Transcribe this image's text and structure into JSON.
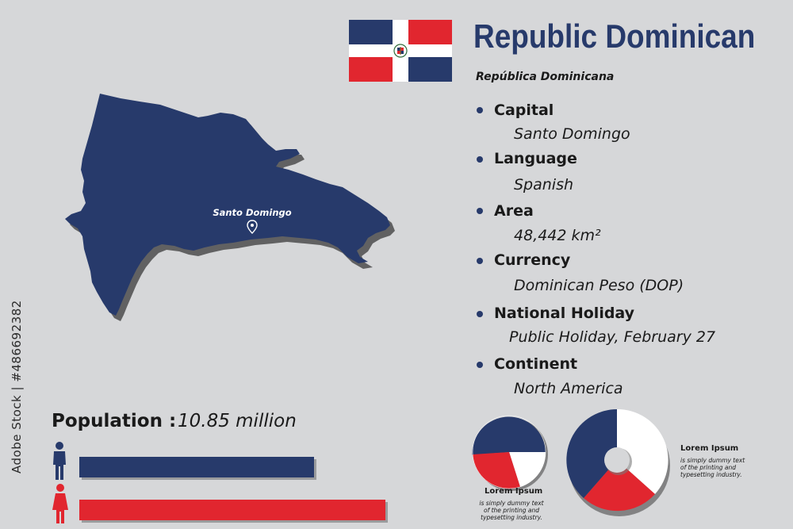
{
  "title": "Republic Dominican",
  "subtitle": "República Dominicana",
  "facts": [
    {
      "label": "Capital",
      "value": "Santo Domingo"
    },
    {
      "label": "Language",
      "value": "Spanish"
    },
    {
      "label": "Area",
      "value": "48,442 km²"
    },
    {
      "label": "Currency",
      "value": "Dominican Peso (DOP)"
    },
    {
      "label": "National Holiday",
      "value": "Public Holiday, February 27"
    },
    {
      "label": "Continent",
      "value": "North America"
    }
  ],
  "map": {
    "capital_label": "Santo Domingo"
  },
  "population": {
    "label": "Population :",
    "value": "10.85 million"
  },
  "stock_id": "Adobe Stock | #486692382",
  "pie_small": {
    "title": "Lorem Ipsum",
    "text": [
      "is simply dummy text",
      "of the printing and",
      "typesetting industry."
    ]
  },
  "pie_large": {
    "title": "Lorem Ipsum",
    "text": [
      "is simply dummy text",
      "of the printing and",
      "typesetting industry."
    ]
  },
  "colors": {
    "navy": "#273a6b",
    "red": "#e1262f",
    "white": "#ffffff",
    "background": "#d6d7d9"
  },
  "icons": {
    "male": "male-person-icon",
    "female": "female-person-icon",
    "capital_pin": "location-pin-icon"
  }
}
